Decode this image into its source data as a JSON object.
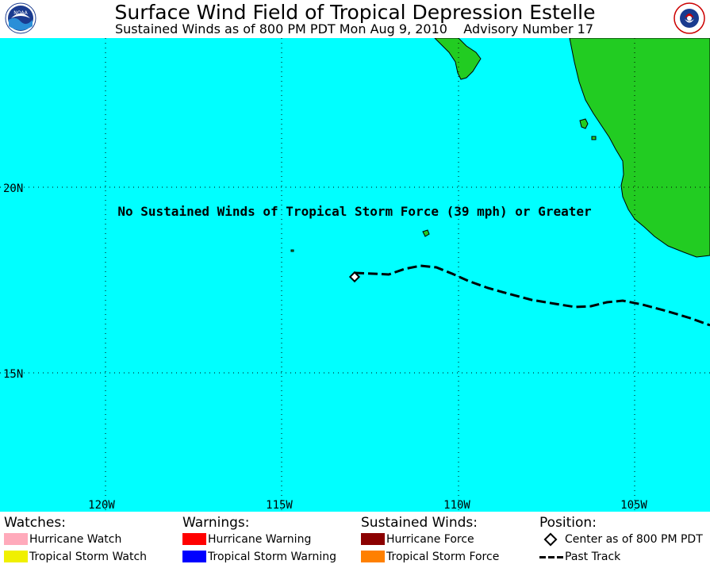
{
  "header": {
    "title": "Surface Wind Field of Tropical Depression Estelle",
    "subtitle": "Sustained Winds as of 800 PM PDT Mon Aug 9, 2010    Advisory Number 17",
    "left_logo_text": "NOAA",
    "right_logo_text": "NATIONAL WEATHER SERVICE"
  },
  "map": {
    "message": "No Sustained Winds of Tropical Storm Force (39 mph) or Greater",
    "lat_labels": [
      "20N",
      "15N"
    ],
    "lon_labels": [
      "120W",
      "115W",
      "110W",
      "105W"
    ],
    "colors": {
      "ocean": "#00ffff",
      "land": "#22cc22",
      "track": "#000000"
    }
  },
  "legend": {
    "watches": {
      "heading": "Watches:",
      "items": [
        {
          "label": "Hurricane Watch",
          "color": "#ffaabb"
        },
        {
          "label": "Tropical Storm Watch",
          "color": "#f0f000"
        }
      ]
    },
    "warnings": {
      "heading": "Warnings:",
      "items": [
        {
          "label": "Hurricane Warning",
          "color": "#ff0000"
        },
        {
          "label": "Tropical Storm Warning",
          "color": "#0000ff"
        }
      ]
    },
    "winds": {
      "heading": "Sustained Winds:",
      "items": [
        {
          "label": "Hurricane Force",
          "color": "#8b0000"
        },
        {
          "label": "Tropical Storm Force",
          "color": "#ff8000"
        }
      ]
    },
    "position": {
      "heading": "Position:",
      "center_label": "Center as of 800 PM PDT",
      "track_label": "Past Track"
    }
  }
}
